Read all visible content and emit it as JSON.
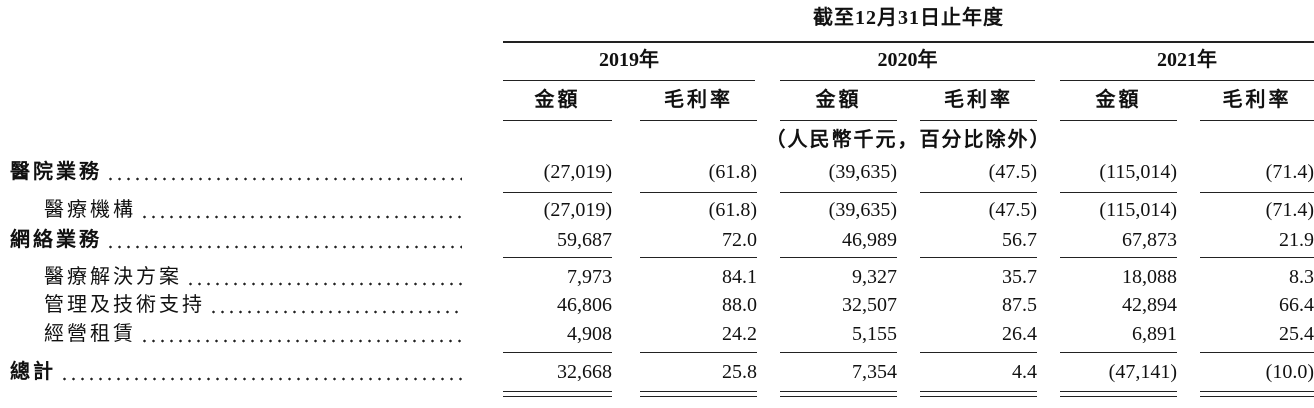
{
  "header": {
    "period": "截至12月31日止年度",
    "years": [
      "2019年",
      "2020年",
      "2021年"
    ],
    "columns": [
      "金額",
      "毛利率"
    ],
    "unit": "（人民幣千元，百分比除外）"
  },
  "rows": [
    {
      "label": "醫院業務",
      "values": [
        "(27,019)",
        "(61.8)",
        "(39,635)",
        "(47.5)",
        "(115,014)",
        "(71.4)"
      ]
    },
    {
      "label": "醫療機構",
      "values": [
        "(27,019)",
        "(61.8)",
        "(39,635)",
        "(47.5)",
        "(115,014)",
        "(71.4)"
      ]
    },
    {
      "label": "網絡業務",
      "values": [
        "59,687",
        "72.0",
        "46,989",
        "56.7",
        "67,873",
        "21.9"
      ]
    },
    {
      "label": "醫療解決方案",
      "values": [
        "7,973",
        "84.1",
        "9,327",
        "35.7",
        "18,088",
        "8.3"
      ]
    },
    {
      "label": "管理及技術支持",
      "values": [
        "46,806",
        "88.0",
        "32,507",
        "87.5",
        "42,894",
        "66.4"
      ]
    },
    {
      "label": "經營租賃",
      "values": [
        "4,908",
        "24.2",
        "5,155",
        "26.4",
        "6,891",
        "25.4"
      ]
    },
    {
      "label": "總計",
      "values": [
        "32,668",
        "25.8",
        "7,354",
        "4.4",
        "(47,141)",
        "(10.0)"
      ]
    }
  ]
}
